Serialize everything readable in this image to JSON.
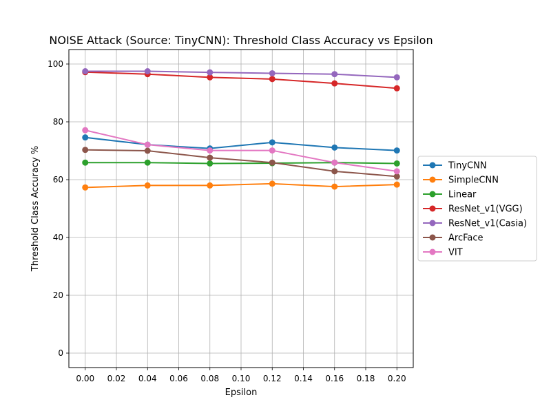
{
  "chart_data": {
    "type": "line",
    "title": "NOISE Attack (Source: TinyCNN): Threshold Class Accuracy vs Epsilon",
    "xlabel": "Epsilon",
    "ylabel": "Threshold Class Accuracy %",
    "xlim": [
      -0.0105,
      0.2105
    ],
    "ylim": [
      -5,
      105
    ],
    "x_ticks": [
      0.0,
      0.02,
      0.04,
      0.06,
      0.08,
      0.1,
      0.12,
      0.14,
      0.16,
      0.18,
      0.2
    ],
    "x_tick_labels": [
      "0.00",
      "0.02",
      "0.04",
      "0.06",
      "0.08",
      "0.10",
      "0.12",
      "0.14",
      "0.16",
      "0.18",
      "0.20"
    ],
    "y_ticks": [
      0,
      20,
      40,
      60,
      80,
      100
    ],
    "y_tick_labels": [
      "0",
      "20",
      "40",
      "60",
      "80",
      "100"
    ],
    "grid": true,
    "legend_position": "center-right-outside",
    "x": [
      0.0,
      0.04,
      0.08,
      0.12,
      0.16,
      0.2
    ],
    "series": [
      {
        "name": "TinyCNN",
        "color": "#1f77b4",
        "values": [
          74.6,
          72.1,
          70.8,
          72.9,
          71.1,
          70.1
        ]
      },
      {
        "name": "SimpleCNN",
        "color": "#ff7f0e",
        "values": [
          57.3,
          58.0,
          58.0,
          58.6,
          57.6,
          58.3
        ]
      },
      {
        "name": "Linear",
        "color": "#2ca02c",
        "values": [
          65.9,
          65.9,
          65.6,
          65.7,
          65.9,
          65.6
        ]
      },
      {
        "name": "ResNet_v1(VGG)",
        "color": "#d62728",
        "values": [
          97.2,
          96.5,
          95.4,
          94.8,
          93.3,
          91.6
        ]
      },
      {
        "name": "ResNet_v1(Casia)",
        "color": "#9467bd",
        "values": [
          97.5,
          97.5,
          97.1,
          96.8,
          96.5,
          95.4
        ]
      },
      {
        "name": "ArcFace",
        "color": "#8c564b",
        "values": [
          70.3,
          70.0,
          67.6,
          65.9,
          62.9,
          61.1
        ]
      },
      {
        "name": "VIT",
        "color": "#e377c2",
        "values": [
          77.1,
          72.1,
          70.1,
          70.1,
          65.9,
          62.9
        ]
      }
    ]
  }
}
